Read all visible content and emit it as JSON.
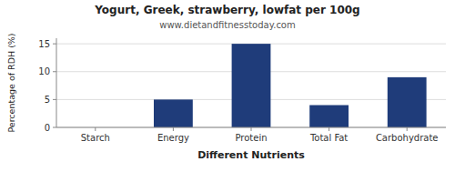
{
  "chart_data": {
    "type": "bar",
    "title": "Yogurt, Greek, strawberry, lowfat per 100g",
    "subtitle": "www.dietandfitnesstoday.com",
    "xlabel": "Different Nutrients",
    "ylabel": "Percentage of RDH (%)",
    "categories": [
      "Starch",
      "Energy",
      "Protein",
      "Total Fat",
      "Carbohydrate"
    ],
    "values": [
      0,
      5,
      15,
      4,
      9
    ],
    "color": "#1f3c7a",
    "ylim": [
      0,
      16
    ],
    "yticks": [
      0,
      5,
      10,
      15
    ],
    "grid": true
  }
}
